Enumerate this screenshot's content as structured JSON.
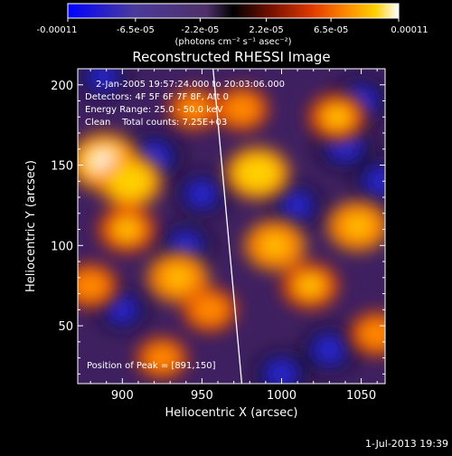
{
  "chart_data": {
    "type": "heatmap",
    "title": "Reconstructed RHESSI Image",
    "xlabel": "Heliocentric X (arcsec)",
    "ylabel": "Heliocentric Y (arcsec)",
    "xlim": [
      872,
      1065
    ],
    "ylim": [
      14,
      210
    ],
    "x_ticks": [
      "900",
      "950",
      "1000",
      "1050"
    ],
    "x_tick_values": [
      900,
      950,
      1000,
      1050
    ],
    "y_ticks": [
      "50",
      "100",
      "150",
      "200"
    ],
    "y_tick_values": [
      50,
      100,
      150,
      200
    ],
    "colorbar": {
      "ticks": [
        "-0.00011",
        "-6.5e-05",
        "-2.2e-05",
        "2.2e-05",
        "6.5e-05",
        "0.00011"
      ],
      "tick_values": [
        -0.00011,
        -6.5e-05,
        -2.2e-05,
        2.2e-05,
        6.5e-05,
        0.00011
      ],
      "range": [
        -0.00011,
        0.00011
      ],
      "units": "(photons cm⁻² s⁻¹ asec⁻²)"
    },
    "annotations": {
      "time_range": "2-Jan-2005 19:57:24.000 to 20:03:06.000",
      "detectors": "Detectors: 4F 5F 6F 7F 8F, Att 0",
      "energy": "Energy Range: 25.0 - 50.0 keV",
      "clean": "Clean    Total counts: 7.25E+03",
      "peak": "Position of Peak = [891,150]"
    },
    "peak_position": [
      891,
      150
    ],
    "limb_line": [
      [
        957,
        210
      ],
      [
        975,
        14
      ]
    ],
    "emission_blobs": [
      {
        "x": 889,
        "y": 152,
        "peak": 0.00011
      },
      {
        "x": 905,
        "y": 140,
        "peak": 9e-05
      },
      {
        "x": 880,
        "y": 75,
        "peak": 6e-05
      },
      {
        "x": 903,
        "y": 110,
        "peak": 7e-05
      },
      {
        "x": 935,
        "y": 80,
        "peak": 8e-05
      },
      {
        "x": 955,
        "y": 60,
        "peak": 6e-05
      },
      {
        "x": 985,
        "y": 145,
        "peak": 9e-05
      },
      {
        "x": 996,
        "y": 100,
        "peak": 8e-05
      },
      {
        "x": 1018,
        "y": 75,
        "peak": 7e-05
      },
      {
        "x": 1048,
        "y": 112,
        "peak": 8e-05
      },
      {
        "x": 1035,
        "y": 180,
        "peak": 7e-05
      },
      {
        "x": 975,
        "y": 185,
        "peak": 6e-05
      },
      {
        "x": 1060,
        "y": 45,
        "peak": 6e-05
      },
      {
        "x": 945,
        "y": 185,
        "peak": 5e-05
      },
      {
        "x": 925,
        "y": 30,
        "peak": 5e-05
      }
    ],
    "negative_blobs": [
      {
        "x": 920,
        "y": 155,
        "peak": -9e-05
      },
      {
        "x": 950,
        "y": 132,
        "peak": -7e-05
      },
      {
        "x": 1040,
        "y": 162,
        "peak": -9e-05
      },
      {
        "x": 940,
        "y": 100,
        "peak": -7e-05
      },
      {
        "x": 888,
        "y": 205,
        "peak": -6e-05
      },
      {
        "x": 1000,
        "y": 20,
        "peak": -8e-05
      },
      {
        "x": 1030,
        "y": 35,
        "peak": -8e-05
      },
      {
        "x": 1050,
        "y": 190,
        "peak": -8e-05
      },
      {
        "x": 900,
        "y": 60,
        "peak": -6e-05
      },
      {
        "x": 1010,
        "y": 125,
        "peak": -6e-05
      },
      {
        "x": 1062,
        "y": 140,
        "peak": -7e-05
      }
    ],
    "colors": {
      "background": "#000000",
      "text": "#ffffff",
      "colormap": [
        "#0000ff",
        "#4b3a9c",
        "#4e3068",
        "#000000",
        "#7a1200",
        "#e03a00",
        "#ff8800",
        "#ffd000",
        "#ffffff"
      ]
    }
  },
  "footer_date": "1-Jul-2013 19:39"
}
